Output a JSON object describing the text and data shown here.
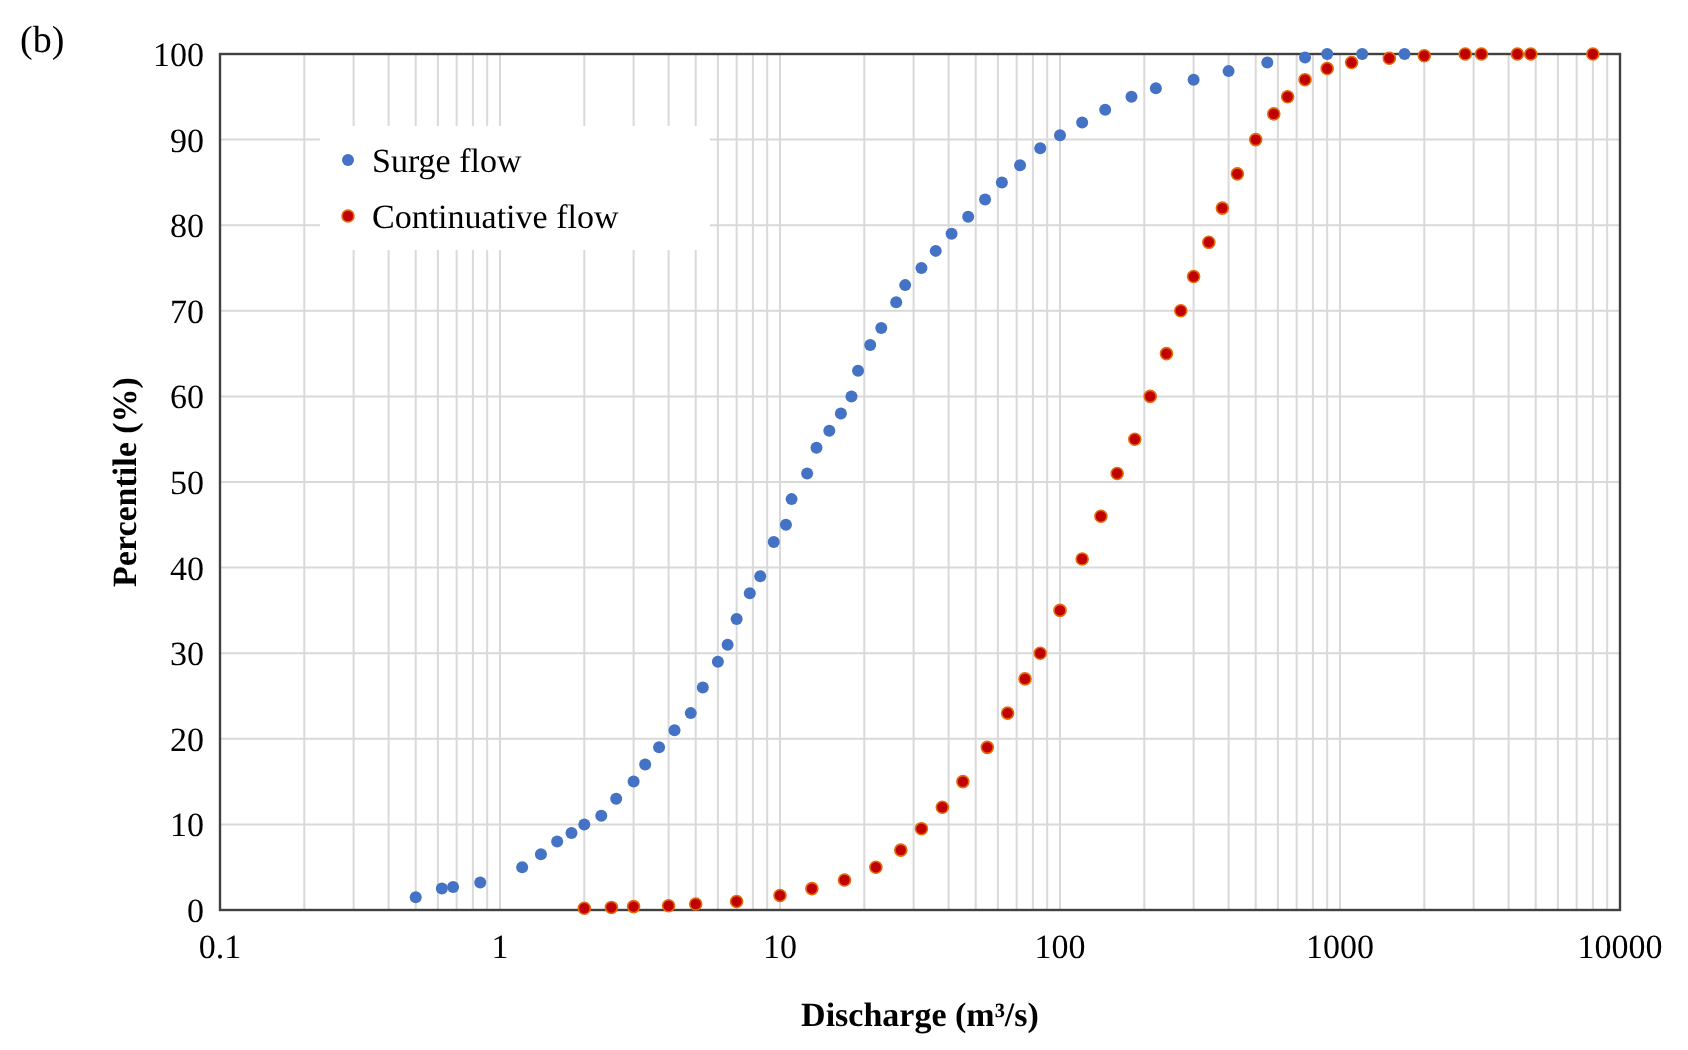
{
  "chart_data": {
    "type": "scatter",
    "xlabel": "Discharge (m³/s)",
    "ylabel": "Percentile (%)",
    "annotations": [
      "(b)"
    ],
    "log": "x",
    "grid": true,
    "legend": "top left",
    "marker": "circle",
    "xlim": [
      0.1,
      10000
    ],
    "ylim": [
      0,
      100
    ],
    "xticks": [
      0.1,
      {
        "value": 0.2,
        "label": null
      },
      {
        "value": 0.3,
        "label": null
      },
      {
        "value": 0.4,
        "label": null
      },
      {
        "value": 0.5,
        "label": null
      },
      {
        "value": 0.6,
        "label": null
      },
      {
        "value": 0.7,
        "label": null
      },
      {
        "value": 0.8,
        "label": null
      },
      {
        "value": 0.9,
        "label": null
      },
      1,
      {
        "value": 2,
        "label": null
      },
      {
        "value": 3,
        "label": null
      },
      {
        "value": 4,
        "label": null
      },
      {
        "value": 5,
        "label": null
      },
      {
        "value": 6,
        "label": null
      },
      {
        "value": 7,
        "label": null
      },
      {
        "value": 8,
        "label": null
      },
      {
        "value": 9,
        "label": null
      },
      10,
      {
        "value": 20,
        "label": null
      },
      {
        "value": 30,
        "label": null
      },
      {
        "value": 40,
        "label": null
      },
      {
        "value": 50,
        "label": null
      },
      {
        "value": 60,
        "label": null
      },
      {
        "value": 70,
        "label": null
      },
      {
        "value": 80,
        "label": null
      },
      {
        "value": 90,
        "label": null
      },
      100,
      {
        "value": 200,
        "label": null
      },
      {
        "value": 300,
        "label": null
      },
      {
        "value": 400,
        "label": null
      },
      {
        "value": 500,
        "label": null
      },
      {
        "value": 600,
        "label": null
      },
      {
        "value": 700,
        "label": null
      },
      {
        "value": 800,
        "label": null
      },
      {
        "value": 900,
        "label": null
      },
      1000,
      {
        "value": 2000,
        "label": null
      },
      {
        "value": 3000,
        "label": null
      },
      {
        "value": 4000,
        "label": null
      },
      {
        "value": 5000,
        "label": null
      },
      {
        "value": 6000,
        "label": null
      },
      {
        "value": 7000,
        "label": null
      },
      {
        "value": 8000,
        "label": null
      },
      {
        "value": 9000,
        "label": null
      },
      10000
    ],
    "yticks": [
      0,
      10,
      20,
      30,
      40,
      50,
      60,
      70,
      80,
      90,
      100
    ],
    "series": [
      {
        "name": "Surge flow",
        "color": "#4472c4",
        "x": [
          0.5,
          0.62,
          0.68,
          0.85,
          1.2,
          1.4,
          1.6,
          1.8,
          2,
          2.3,
          2.6,
          3,
          3.3,
          3.7,
          4.2,
          4.8,
          5.3,
          6,
          6.5,
          7,
          7.8,
          8.5,
          9.5,
          10.5,
          11,
          12.5,
          13.5,
          15,
          16.5,
          18,
          19,
          21,
          23,
          26,
          28,
          32,
          36,
          41,
          47,
          54,
          62,
          72,
          85,
          100,
          120,
          145,
          180,
          220,
          300,
          400,
          550,
          750,
          900,
          1200,
          1700
        ],
        "values": [
          1.5,
          2.5,
          2.7,
          3.2,
          5,
          6.5,
          8,
          9,
          10,
          11,
          13,
          15,
          17,
          19,
          21,
          23,
          26,
          29,
          31,
          34,
          37,
          39,
          43,
          45,
          48,
          51,
          54,
          56,
          58,
          60,
          63,
          66,
          68,
          71,
          73,
          75,
          77,
          79,
          81,
          83,
          85,
          87,
          89,
          90.5,
          92,
          93.5,
          95,
          96,
          97,
          98,
          99,
          99.6,
          100,
          100,
          100
        ]
      },
      {
        "name": "Continuative flow",
        "color": "#c00000",
        "x": [
          2,
          2.5,
          3,
          4,
          5,
          7,
          10,
          13,
          17,
          22,
          27,
          32,
          38,
          45,
          55,
          65,
          75,
          85,
          100,
          120,
          140,
          160,
          185,
          210,
          240,
          270,
          300,
          340,
          380,
          430,
          500,
          580,
          650,
          750,
          900,
          1100,
          1500,
          2000,
          2800,
          3200,
          4300,
          4800,
          8000
        ],
        "values": [
          0.2,
          0.3,
          0.4,
          0.5,
          0.7,
          1,
          1.7,
          2.5,
          3.5,
          5,
          7,
          9.5,
          12,
          15,
          19,
          23,
          27,
          30,
          35,
          41,
          46,
          51,
          55,
          60,
          65,
          70,
          74,
          78,
          82,
          86,
          90,
          93,
          95,
          97,
          98.3,
          99,
          99.5,
          99.8,
          100,
          100,
          100,
          100,
          100
        ]
      }
    ]
  }
}
